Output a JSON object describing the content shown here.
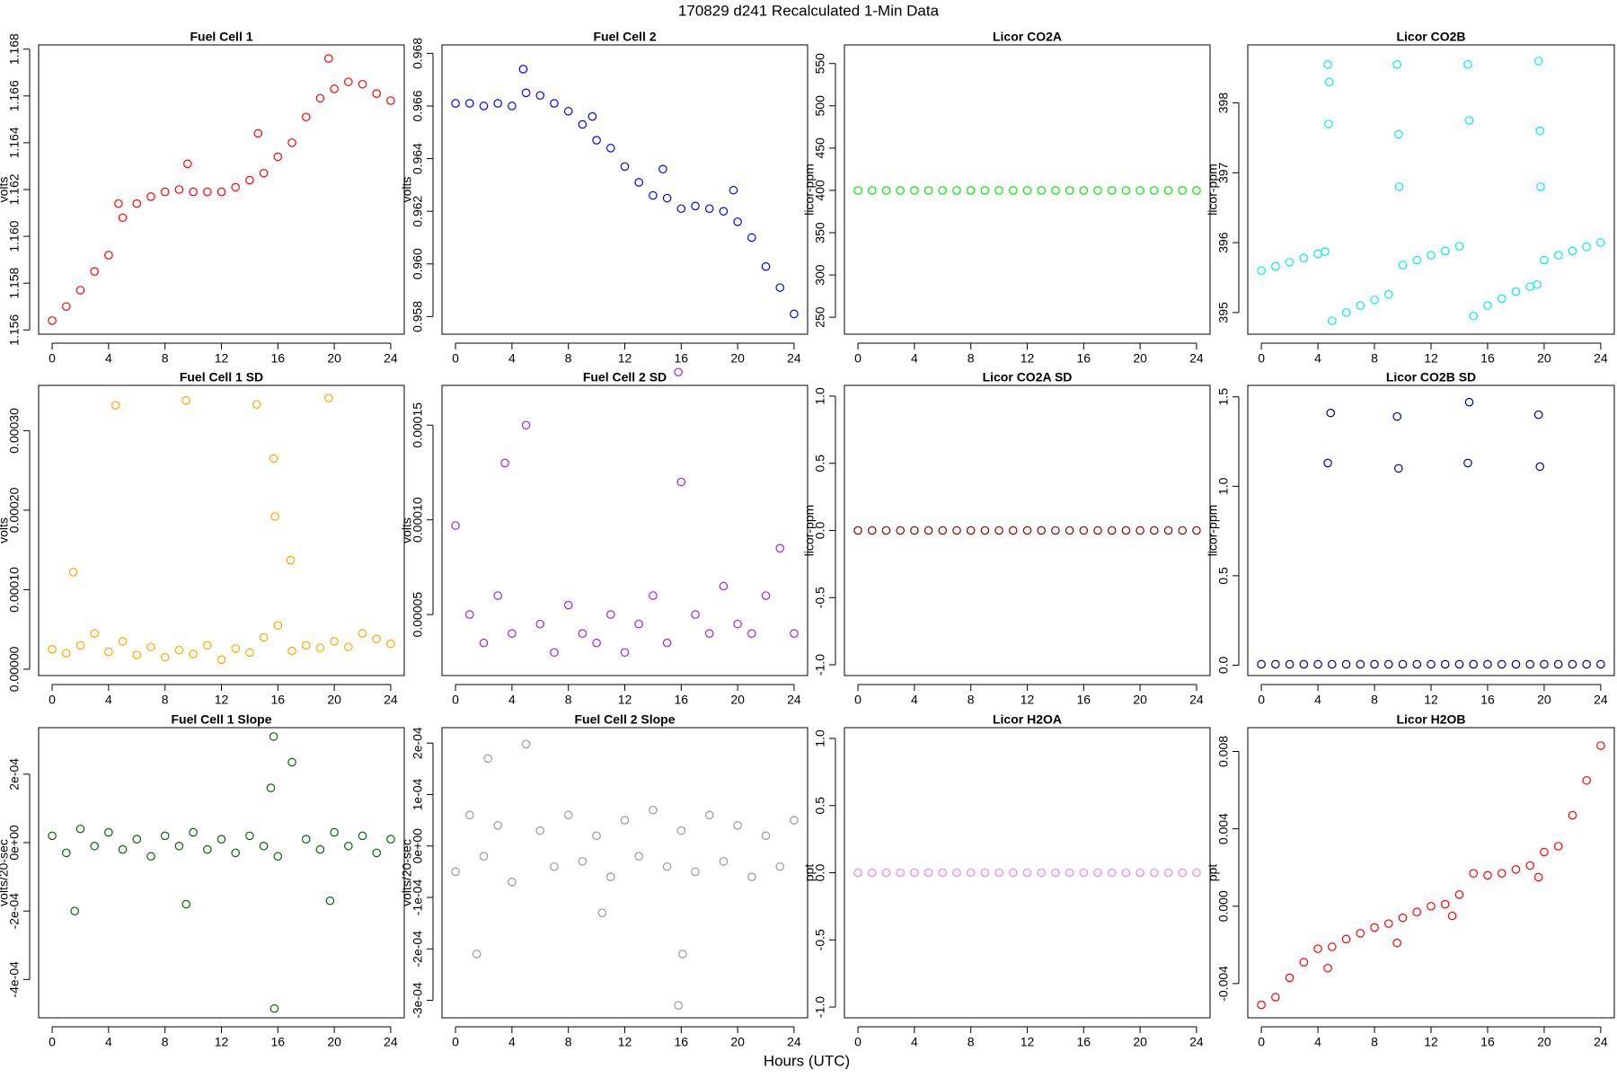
{
  "title": "170829   d241   Recalculated 1-Min Data",
  "x_label": "Hours (UTC)",
  "chart_data": [
    {
      "type": "scatter",
      "title": "Fuel Cell 1",
      "y_label": "volts",
      "color": "#ff0000",
      "x": [
        0,
        1,
        2,
        3,
        4,
        4.7,
        5,
        6,
        7,
        8,
        9,
        9.6,
        10,
        11,
        12,
        13,
        14,
        14.6,
        15,
        16,
        17,
        18,
        19,
        19.6,
        20,
        21,
        22,
        23,
        24
      ],
      "values": [
        1.1564,
        1.157,
        1.1577,
        1.1585,
        1.1592,
        1.1614,
        1.1608,
        1.1614,
        1.1617,
        1.1619,
        1.162,
        1.1631,
        1.1619,
        1.1619,
        1.1619,
        1.1621,
        1.1624,
        1.1644,
        1.1627,
        1.1634,
        1.164,
        1.1651,
        1.1659,
        1.1676,
        1.1663,
        1.1666,
        1.1665,
        1.1661,
        1.1658
      ],
      "xlim": [
        -0.96,
        24.96
      ],
      "xticks": [
        0,
        4,
        8,
        12,
        16,
        20,
        24
      ],
      "ylim": [
        1.15582,
        1.16818
      ],
      "yticks": [
        1.156,
        1.158,
        {
          "value": 1.16,
          "label": "1.160"
        },
        1.162,
        1.164,
        1.166,
        1.168
      ]
    },
    {
      "type": "scatter",
      "title": "Fuel Cell 2",
      "y_label": "volts",
      "color": "#0000ff",
      "x": [
        0,
        1,
        2,
        3,
        4,
        4.8,
        5,
        6,
        7,
        8,
        9,
        9.7,
        10,
        11,
        12,
        13,
        14,
        14.7,
        15,
        16,
        17,
        18,
        19,
        19.7,
        20,
        21,
        22,
        23,
        24
      ],
      "values": [
        0.9661,
        0.9661,
        0.966,
        0.9661,
        0.966,
        0.9674,
        0.9665,
        0.9664,
        0.9661,
        0.9658,
        0.9653,
        0.9656,
        0.9647,
        0.9644,
        0.9637,
        0.9631,
        0.9626,
        0.9636,
        0.9625,
        0.9621,
        0.9622,
        0.9621,
        0.962,
        0.9628,
        0.9616,
        0.961,
        0.9599,
        0.9591,
        0.9581
      ],
      "xlim": [
        -0.96,
        24.96
      ],
      "xticks": [
        0,
        4,
        8,
        12,
        16,
        20,
        24
      ],
      "ylim": [
        0.95733,
        0.96832
      ],
      "yticks": [
        0.958,
        {
          "value": 0.96,
          "label": "0.960"
        },
        0.962,
        0.964,
        0.966,
        0.968
      ]
    },
    {
      "type": "scatter",
      "title": "Licor CO2A",
      "y_label": "licor-ppm",
      "color": "#00ee00",
      "x": [
        0,
        1,
        2,
        3,
        4,
        5,
        6,
        7,
        8,
        9,
        10,
        11,
        12,
        13,
        14,
        15,
        16,
        17,
        18,
        19,
        20,
        21,
        22,
        23,
        24
      ],
      "values": [
        400,
        400,
        400,
        400,
        400,
        400,
        400,
        400,
        400,
        400,
        400,
        400,
        400,
        400,
        400,
        400,
        400,
        400,
        400,
        400,
        400,
        400,
        400,
        400,
        400
      ],
      "xlim": [
        -0.96,
        24.96
      ],
      "xticks": [
        0,
        4,
        8,
        12,
        16,
        20,
        24
      ],
      "ylim": [
        230,
        572
      ],
      "yticks": [
        250,
        300,
        350,
        400,
        450,
        500,
        550
      ]
    },
    {
      "type": "scatter",
      "title": "Licor CO2B",
      "y_label": "licor-ppm",
      "color": "#00eeee",
      "x": [
        0,
        1,
        2,
        3,
        4,
        4.5,
        4.7,
        4.75,
        4.8,
        5,
        6,
        7,
        8,
        9,
        9.6,
        9.7,
        9.75,
        10,
        11,
        12,
        13,
        14,
        14.6,
        14.7,
        15,
        16,
        17,
        18,
        19,
        19.5,
        19.6,
        19.7,
        19.75,
        20,
        21,
        22,
        23,
        24
      ],
      "values": [
        395.6,
        395.66,
        395.72,
        395.78,
        395.84,
        395.87,
        398.55,
        397.7,
        398.3,
        394.88,
        395,
        395.1,
        395.18,
        395.26,
        398.55,
        397.55,
        396.8,
        395.68,
        395.75,
        395.82,
        395.88,
        395.95,
        398.55,
        397.75,
        394.95,
        395.1,
        395.2,
        395.3,
        395.37,
        395.4,
        398.6,
        397.6,
        396.8,
        395.75,
        395.82,
        395.88,
        395.94,
        396
      ],
      "xlim": [
        -0.96,
        24.96
      ],
      "xticks": [
        0,
        4,
        8,
        12,
        16,
        20,
        24
      ],
      "ylim": [
        394.69,
        398.83
      ],
      "yticks": [
        395,
        396,
        397,
        398
      ]
    },
    {
      "type": "scatter",
      "title": "Fuel Cell 1 SD",
      "y_label": "volts",
      "color": "#ffa500",
      "x": [
        0,
        1,
        1.5,
        2,
        3,
        4,
        4.5,
        5,
        6,
        7,
        8,
        9,
        9.5,
        10,
        11,
        12,
        13,
        14,
        14.5,
        15,
        15.7,
        15.8,
        16,
        16.9,
        17,
        18,
        19,
        19.6,
        20,
        21,
        22,
        23,
        24
      ],
      "values": [
        2.5e-05,
        2e-05,
        0.000122,
        3e-05,
        4.5e-05,
        2.2e-05,
        0.000332,
        3.5e-05,
        1.8e-05,
        2.8e-05,
        1.5e-05,
        2.4e-05,
        0.000338,
        1.9e-05,
        3e-05,
        1.2e-05,
        2.6e-05,
        2.1e-05,
        0.000333,
        4e-05,
        0.000265,
        0.000192,
        5.5e-05,
        0.000137,
        2.3e-05,
        3e-05,
        2.7e-05,
        0.000341,
        3.5e-05,
        2.8e-05,
        4.5e-05,
        3.8e-05,
        3.2e-05
      ],
      "xlim": [
        -0.96,
        24.96
      ],
      "xticks": [
        0,
        4,
        8,
        12,
        16,
        20,
        24
      ],
      "ylim": [
        -8e-06,
        0.000357
      ],
      "yticks": [
        {
          "value": 0,
          "label": "0.00000"
        },
        {
          "value": 0.0001,
          "label": "0.00010"
        },
        {
          "value": 0.0002,
          "label": "0.00020"
        },
        {
          "value": 0.0003,
          "label": "0.00030"
        }
      ]
    },
    {
      "type": "scatter",
      "title": "Fuel Cell 2 SD",
      "y_label": "volts",
      "color": "#a020f0",
      "x": [
        0,
        1,
        2,
        3,
        3.5,
        4,
        5,
        6,
        7,
        8,
        9,
        10,
        11,
        12,
        13,
        14,
        15,
        15.8,
        16,
        17,
        18,
        19,
        20,
        21,
        22,
        23,
        24
      ],
      "values": [
        9.7e-05,
        5e-05,
        3.5e-05,
        6e-05,
        0.00013,
        4e-05,
        0.00015,
        4.5e-05,
        3e-05,
        5.5e-05,
        4e-05,
        3.5e-05,
        5e-05,
        3e-05,
        4.5e-05,
        6e-05,
        3.5e-05,
        0.000178,
        0.00012,
        5e-05,
        4e-05,
        6.5e-05,
        4.5e-05,
        4e-05,
        6e-05,
        8.5e-05,
        4e-05
      ],
      "xlim": [
        -0.96,
        24.96
      ],
      "xticks": [
        0,
        4,
        8,
        12,
        16,
        20,
        24
      ],
      "ylim": [
        1.78e-05,
        0.000171
      ],
      "yticks": [
        5e-05,
        {
          "value": 0.0001,
          "label": "0.00010"
        },
        0.00015
      ]
    },
    {
      "type": "scatter",
      "title": "Licor CO2A SD",
      "y_label": "licor-ppm",
      "color": "#8b0000",
      "x": [
        0,
        1,
        2,
        3,
        4,
        5,
        6,
        7,
        8,
        9,
        10,
        11,
        12,
        13,
        14,
        15,
        16,
        17,
        18,
        19,
        20,
        21,
        22,
        23,
        24
      ],
      "values": [
        0,
        0,
        0,
        0,
        0,
        0,
        0,
        0,
        0,
        0,
        0,
        0,
        0,
        0,
        0,
        0,
        0,
        0,
        0,
        0,
        0,
        0,
        0,
        0,
        0
      ],
      "xlim": [
        -0.96,
        24.96
      ],
      "xticks": [
        0,
        4,
        8,
        12,
        16,
        20,
        24
      ],
      "ylim": [
        -1.08,
        1.08
      ],
      "yticks": [
        {
          "value": -1,
          "label": "-1.0"
        },
        -0.5,
        {
          "value": 0,
          "label": "0.0"
        },
        0.5,
        {
          "value": 1,
          "label": "1.0"
        }
      ]
    },
    {
      "type": "scatter",
      "title": "Licor CO2B SD",
      "y_label": "licor-ppm",
      "color": "#00008b",
      "x": [
        0,
        1,
        2,
        3,
        4,
        4.7,
        4.9,
        5,
        6,
        7,
        8,
        9,
        9.6,
        9.7,
        10,
        11,
        12,
        13,
        14,
        14.6,
        14.7,
        15,
        16,
        17,
        18,
        19,
        19.6,
        19.7,
        20,
        21,
        22,
        23,
        24
      ],
      "values": [
        0.005,
        0.005,
        0.005,
        0.005,
        0.005,
        1.13,
        1.41,
        0.005,
        0.005,
        0.005,
        0.005,
        0.005,
        1.39,
        1.1,
        0.005,
        0.005,
        0.005,
        0.005,
        0.005,
        1.13,
        1.47,
        0.005,
        0.005,
        0.005,
        0.005,
        0.005,
        1.4,
        1.11,
        0.005,
        0.005,
        0.005,
        0.005,
        0.005
      ],
      "xlim": [
        -0.96,
        24.96
      ],
      "xticks": [
        0,
        4,
        8,
        12,
        16,
        20,
        24
      ],
      "ylim": [
        -0.058,
        1.564
      ],
      "yticks": [
        {
          "value": 0,
          "label": "0.0"
        },
        0.5,
        {
          "value": 1,
          "label": "1.0"
        },
        1.5
      ]
    },
    {
      "type": "scatter",
      "title": "Fuel Cell 1 Slope",
      "y_label": "volts/20-sec",
      "color": "#006400",
      "x": [
        0,
        1,
        1.6,
        2,
        3,
        4,
        5,
        6,
        7,
        8,
        9,
        9.5,
        10,
        11,
        12,
        13,
        14,
        15,
        15.5,
        15.7,
        15.75,
        16,
        17,
        18,
        19,
        19.7,
        20,
        21,
        22,
        23,
        24
      ],
      "values": [
        2e-05,
        -3e-05,
        -0.0002,
        4e-05,
        -1e-05,
        3e-05,
        -2e-05,
        1e-05,
        -4e-05,
        2e-05,
        -1e-05,
        -0.00018,
        3e-05,
        -2e-05,
        1e-05,
        -3e-05,
        2e-05,
        -1e-05,
        0.00016,
        0.00031,
        -0.000485,
        -4e-05,
        0.000235,
        1e-05,
        -2e-05,
        -0.00017,
        3e-05,
        -1e-05,
        2e-05,
        -3e-05,
        1e-05
      ],
      "xlim": [
        -0.96,
        24.96
      ],
      "xticks": [
        0,
        4,
        8,
        12,
        16,
        20,
        24
      ],
      "ylim": [
        -0.000512,
        0.000336
      ],
      "yticks": [
        {
          "value": -0.0004,
          "label": "-4e-04"
        },
        {
          "value": -0.0002,
          "label": "-2e-04"
        },
        {
          "value": 0,
          "label": "0e+00"
        },
        {
          "value": 0.0002,
          "label": "2e-04"
        }
      ]
    },
    {
      "type": "scatter",
      "title": "Fuel Cell 2 Slope",
      "y_label": "volts/20-sec",
      "color": "#999999",
      "x": [
        0,
        1,
        1.5,
        2,
        2.3,
        3,
        4,
        5,
        6,
        7,
        8,
        9,
        10,
        10.4,
        11,
        12,
        13,
        14,
        15,
        15.8,
        16,
        16.1,
        17,
        18,
        19,
        20,
        21,
        22,
        23,
        24
      ],
      "values": [
        -5e-05,
        6e-05,
        -0.00021,
        -2e-05,
        0.00017,
        4e-05,
        -7e-05,
        0.000198,
        3e-05,
        -4e-05,
        6e-05,
        -3e-05,
        2e-05,
        -0.00013,
        -6e-05,
        5e-05,
        -2e-05,
        7e-05,
        -4e-05,
        -0.00031,
        3e-05,
        -0.00021,
        -5e-05,
        6e-05,
        -3e-05,
        4e-05,
        -6e-05,
        2e-05,
        -4e-05,
        5e-05
      ],
      "xlim": [
        -0.96,
        24.96
      ],
      "xticks": [
        0,
        4,
        8,
        12,
        16,
        20,
        24
      ],
      "ylim": [
        -0.000334,
        0.00023
      ],
      "yticks": [
        {
          "value": -0.0003,
          "label": "-3e-04"
        },
        {
          "value": -0.0002,
          "label": "-2e-04"
        },
        {
          "value": -0.0001,
          "label": "-1e-04"
        },
        {
          "value": 0,
          "label": "0e+00"
        },
        {
          "value": 0.0001,
          "label": "1e-04"
        },
        {
          "value": 0.0002,
          "label": "2e-04"
        }
      ]
    },
    {
      "type": "scatter",
      "title": "Licor H2OA",
      "y_label": "ppt",
      "color": "#ee82ee",
      "x": [
        0,
        1,
        2,
        3,
        4,
        5,
        6,
        7,
        8,
        9,
        10,
        11,
        12,
        13,
        14,
        15,
        16,
        17,
        18,
        19,
        20,
        21,
        22,
        23,
        24
      ],
      "values": [
        0,
        0,
        0,
        0,
        0,
        0,
        0,
        0,
        0,
        0,
        0,
        0,
        0,
        0,
        0,
        0,
        0,
        0,
        0,
        0,
        0,
        0,
        0,
        0,
        0
      ],
      "xlim": [
        -0.96,
        24.96
      ],
      "xticks": [
        0,
        4,
        8,
        12,
        16,
        20,
        24
      ],
      "ylim": [
        -1.08,
        1.08
      ],
      "yticks": [
        {
          "value": -1,
          "label": "-1.0"
        },
        -0.5,
        {
          "value": 0,
          "label": "0.0"
        },
        0.5,
        {
          "value": 1,
          "label": "1.0"
        }
      ]
    },
    {
      "type": "scatter",
      "title": "Licor H2OB",
      "y_label": "ppt",
      "color": "#ff0000",
      "x": [
        0,
        1,
        2,
        3,
        4,
        4.7,
        5,
        6,
        7,
        8,
        9,
        9.6,
        10,
        11,
        12,
        13,
        13.5,
        14,
        15,
        16,
        17,
        18,
        19,
        19.6,
        20,
        21,
        22,
        23,
        24
      ],
      "values": [
        -0.0051,
        -0.0047,
        -0.0037,
        -0.0029,
        -0.0022,
        -0.0032,
        -0.0021,
        -0.0017,
        -0.0014,
        -0.0011,
        -0.0009,
        -0.0019,
        -0.0006,
        -0.0003,
        0,
        0.0001,
        -0.0005,
        0.0006,
        0.0017,
        0.0016,
        0.0017,
        0.0019,
        0.0021,
        0.0015,
        0.0028,
        0.0031,
        0.0047,
        0.0065,
        0.0083
      ],
      "xlim": [
        -0.96,
        24.96
      ],
      "xticks": [
        0,
        4,
        8,
        12,
        16,
        20,
        24
      ],
      "ylim": [
        -0.00577,
        0.00923
      ],
      "yticks": [
        -0.004,
        {
          "value": 0,
          "label": "0.000"
        },
        0.004,
        0.008
      ]
    }
  ]
}
